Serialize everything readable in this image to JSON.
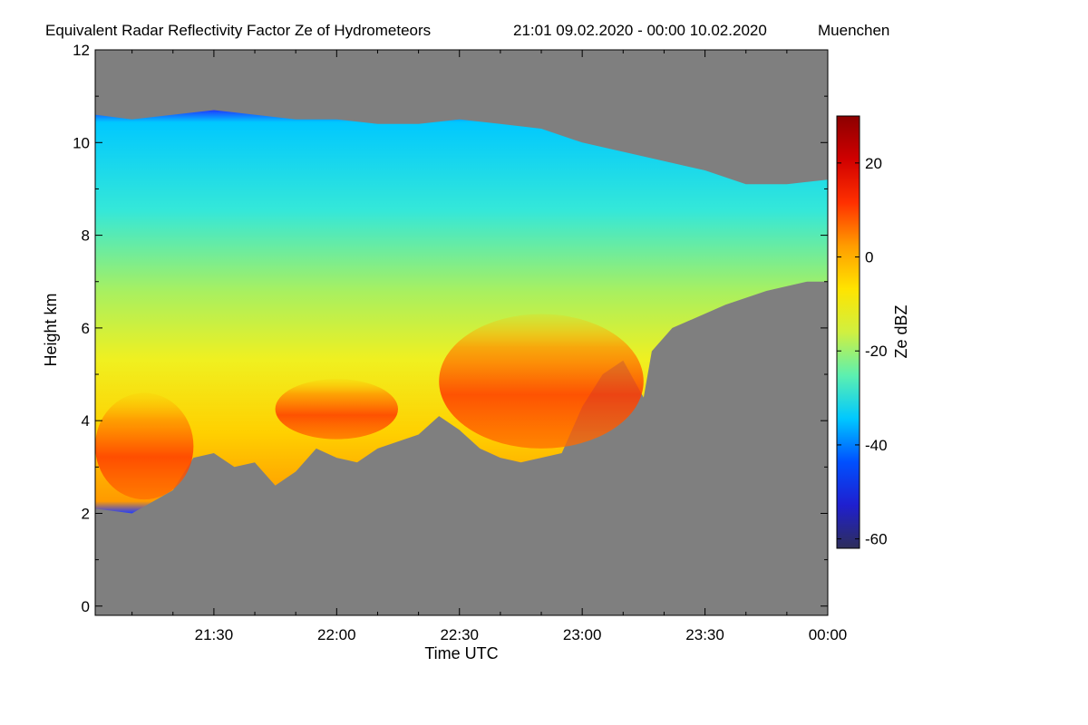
{
  "chart_data": {
    "type": "heatmap",
    "title": "Equivalent Radar Reflectivity Factor Ze of Hydrometeors",
    "period": "21:01 09.02.2020 - 00:00 10.02.2020",
    "location": "Muenchen",
    "xlabel": "Time UTC",
    "ylabel": "Height km",
    "x_ticks": [
      "21:30",
      "22:00",
      "22:30",
      "23:00",
      "23:30",
      "00:00"
    ],
    "x_tick_minutes": [
      30,
      60,
      90,
      120,
      150,
      180
    ],
    "xlim_minutes_after_21_00": [
      1,
      180
    ],
    "y_ticks": [
      0,
      2,
      4,
      6,
      8,
      10,
      12
    ],
    "ylim": [
      -0.2,
      12
    ],
    "colorbar": {
      "label": "Ze dBZ",
      "ticks": [
        20,
        0,
        -20,
        -40,
        -60
      ],
      "range": [
        -62,
        30
      ],
      "colors": [
        "#2e2e5a",
        "#1f1fcf",
        "#0050ff",
        "#00c8ff",
        "#5cf0b0",
        "#d0f040",
        "#ffe400",
        "#ff9c00",
        "#ff3000",
        "#d00000",
        "#8c0000"
      ]
    },
    "background_color": "#7f7f7f",
    "echo_top_km": [
      [
        1,
        10.6
      ],
      [
        10,
        10.5
      ],
      [
        20,
        10.6
      ],
      [
        30,
        10.7
      ],
      [
        40,
        10.6
      ],
      [
        50,
        10.5
      ],
      [
        60,
        10.5
      ],
      [
        70,
        10.4
      ],
      [
        80,
        10.4
      ],
      [
        90,
        10.5
      ],
      [
        100,
        10.4
      ],
      [
        110,
        10.3
      ],
      [
        120,
        10.0
      ],
      [
        130,
        9.8
      ],
      [
        140,
        9.6
      ],
      [
        150,
        9.4
      ],
      [
        160,
        9.1
      ],
      [
        170,
        9.1
      ],
      [
        180,
        9.2
      ]
    ],
    "cloud_base_km": [
      [
        1,
        2.1
      ],
      [
        10,
        2.0
      ],
      [
        20,
        2.5
      ],
      [
        25,
        3.2
      ],
      [
        30,
        3.3
      ],
      [
        35,
        3.0
      ],
      [
        40,
        3.1
      ],
      [
        45,
        2.6
      ],
      [
        50,
        2.9
      ],
      [
        55,
        3.4
      ],
      [
        60,
        3.2
      ],
      [
        65,
        3.1
      ],
      [
        70,
        3.4
      ],
      [
        80,
        3.7
      ],
      [
        85,
        4.1
      ],
      [
        90,
        3.8
      ],
      [
        95,
        3.4
      ],
      [
        100,
        3.2
      ],
      [
        105,
        3.1
      ],
      [
        110,
        3.2
      ],
      [
        115,
        3.3
      ],
      [
        120,
        4.3
      ],
      [
        125,
        5.0
      ],
      [
        130,
        5.3
      ],
      [
        135,
        4.5
      ],
      [
        137,
        5.5
      ],
      [
        142,
        6.0
      ],
      [
        155,
        6.5
      ],
      [
        165,
        6.8
      ],
      [
        175,
        7.0
      ],
      [
        180,
        7.0
      ]
    ],
    "core_layers_dbz_above_10": [
      {
        "from_min": 1,
        "to_min": 25,
        "bottom_km": 2.3,
        "top_km": 4.6
      },
      {
        "from_min": 45,
        "to_min": 75,
        "bottom_km": 3.6,
        "top_km": 4.9
      },
      {
        "from_min": 85,
        "to_min": 135,
        "bottom_km": 3.4,
        "top_km": 6.3
      }
    ]
  }
}
